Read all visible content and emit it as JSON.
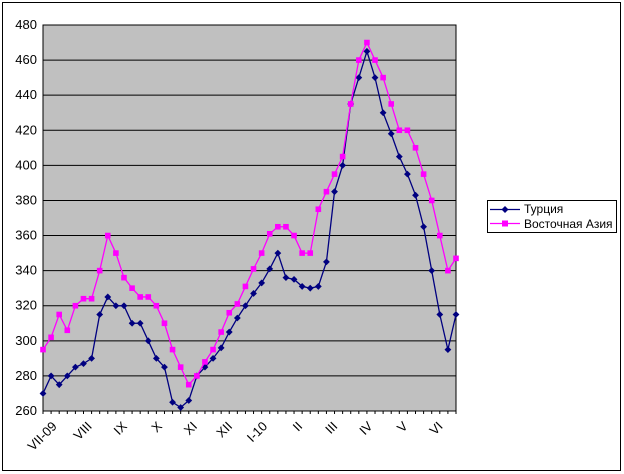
{
  "chart_data": {
    "type": "line",
    "title": "",
    "xlabel": "",
    "ylabel": "",
    "ylim": [
      260,
      480
    ],
    "y_ticks": [
      260,
      280,
      300,
      320,
      340,
      360,
      380,
      400,
      420,
      440,
      460,
      480
    ],
    "x_month_labels": [
      "VII-09",
      "VIII",
      "IX",
      "X",
      "XI",
      "XII",
      "I-10",
      "II",
      "III",
      "IV",
      "V",
      "VI"
    ],
    "grid": true,
    "plot_bg_color": "#c0c0c0",
    "grid_color": "#000000",
    "legend_position": "right",
    "series": [
      {
        "name": "Турция",
        "color": "#000080",
        "marker": "diamond",
        "values": [
          270,
          280,
          275,
          280,
          285,
          287,
          290,
          315,
          325,
          320,
          320,
          310,
          310,
          300,
          290,
          285,
          265,
          262,
          266,
          280,
          285,
          290,
          296,
          305,
          313,
          320,
          327,
          333,
          341,
          350,
          336,
          335,
          331,
          330,
          331,
          345,
          385,
          400,
          435,
          450,
          465,
          450,
          430,
          418,
          405,
          395,
          383,
          365,
          340,
          315,
          295,
          315
        ]
      },
      {
        "name": "Восточная Азия",
        "color": "#ff00ff",
        "marker": "square",
        "values": [
          295,
          302,
          315,
          306,
          320,
          324,
          324,
          340,
          360,
          350,
          336,
          330,
          325,
          325,
          320,
          310,
          295,
          285,
          275,
          280,
          288,
          295,
          305,
          316,
          321,
          331,
          341,
          350,
          361,
          365,
          365,
          360,
          350,
          350,
          375,
          385,
          395,
          405,
          435,
          460,
          470,
          460,
          450,
          435,
          420,
          420,
          410,
          395,
          380,
          360,
          340,
          347
        ]
      }
    ]
  },
  "legend": {
    "items": [
      {
        "label": "Турция"
      },
      {
        "label": "Восточная Азия"
      }
    ]
  }
}
